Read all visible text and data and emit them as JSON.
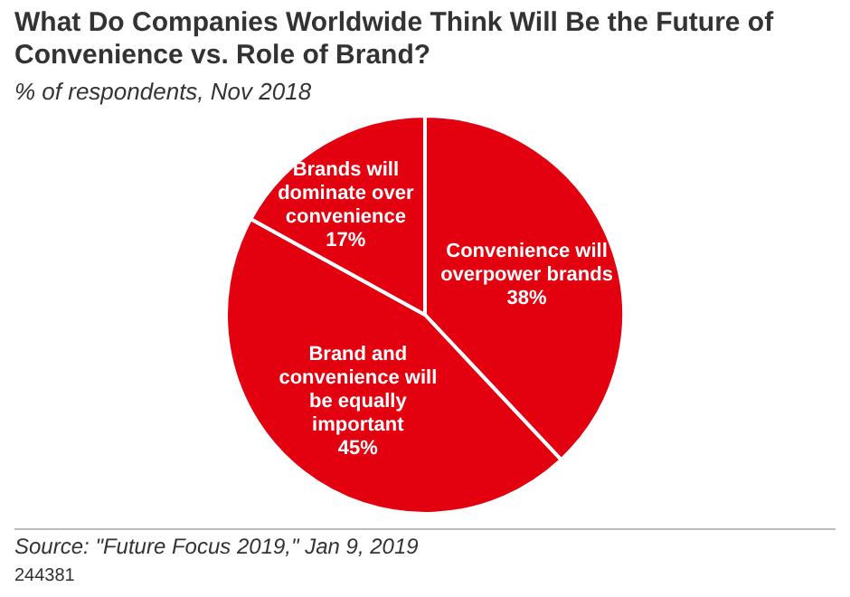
{
  "chart_data": {
    "type": "pie",
    "title": "What Do Companies Worldwide Think Will Be the Future of Convenience vs. Role of Brand?",
    "subtitle": "% of respondents, Nov 2018",
    "categories": [
      "Convenience will overpower brands",
      "Brand and convenience will be equally important",
      "Brands will dominate over convenience"
    ],
    "values": [
      38,
      45,
      17
    ],
    "colors": [
      "#e3000f",
      "#e3000f",
      "#e3000f"
    ],
    "value_labels": [
      "38%",
      "45%",
      "17%"
    ],
    "legend": false,
    "annotations": [
      "Source: \"Future Focus 2019,\" Jan 9, 2019",
      "244381"
    ]
  }
}
